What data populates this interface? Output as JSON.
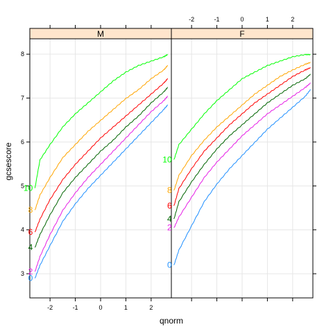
{
  "chart_data": {
    "type": "line",
    "xlabel": "qnorm",
    "ylabel": "gcsescore",
    "xlim": [
      -2.8,
      2.8
    ],
    "ylim": [
      2.45,
      8.35
    ],
    "xticks": [
      -2,
      -1,
      0,
      1,
      2
    ],
    "yticks": [
      3,
      4,
      5,
      6,
      7,
      8
    ],
    "grid": true,
    "panels": [
      {
        "name": "M",
        "series": [
          {
            "name": "0",
            "color": "#1f8fff",
            "x": [
              -2.6,
              -2.4,
              -2.0,
              -1.5,
              -1.0,
              -0.5,
              0.0,
              0.5,
              1.0,
              1.5,
              2.0,
              2.5,
              2.65
            ],
            "y": [
              2.9,
              3.2,
              3.65,
              4.2,
              4.6,
              4.95,
              5.25,
              5.55,
              5.85,
              6.15,
              6.45,
              6.75,
              6.85
            ]
          },
          {
            "name": "2",
            "color": "#e61ee6",
            "x": [
              -2.6,
              -2.4,
              -2.0,
              -1.5,
              -1.0,
              -0.5,
              0.0,
              0.5,
              1.0,
              1.5,
              2.0,
              2.5,
              2.65
            ],
            "y": [
              3.05,
              3.4,
              3.9,
              4.45,
              4.85,
              5.2,
              5.5,
              5.8,
              6.1,
              6.4,
              6.7,
              6.95,
              7.05
            ]
          },
          {
            "name": "4",
            "color": "#006400",
            "x": [
              -2.6,
              -2.4,
              -2.0,
              -1.5,
              -1.0,
              -0.5,
              0.0,
              0.5,
              1.0,
              1.5,
              2.0,
              2.5,
              2.65
            ],
            "y": [
              3.6,
              3.9,
              4.35,
              4.85,
              5.2,
              5.5,
              5.8,
              6.05,
              6.35,
              6.6,
              6.9,
              7.15,
              7.25
            ]
          },
          {
            "name": "6",
            "color": "#ff0000",
            "x": [
              -2.6,
              -2.4,
              -2.0,
              -1.5,
              -1.0,
              -0.5,
              0.0,
              0.5,
              1.0,
              1.5,
              2.0,
              2.5,
              2.65
            ],
            "y": [
              3.95,
              4.25,
              4.7,
              5.15,
              5.5,
              5.8,
              6.1,
              6.35,
              6.6,
              6.85,
              7.1,
              7.35,
              7.45
            ]
          },
          {
            "name": "8",
            "color": "#ffa500",
            "x": [
              -2.6,
              -2.4,
              -2.0,
              -1.5,
              -1.0,
              -0.5,
              0.0,
              0.5,
              1.0,
              1.5,
              2.0,
              2.5,
              2.65
            ],
            "y": [
              4.45,
              4.8,
              5.2,
              5.65,
              5.95,
              6.25,
              6.5,
              6.75,
              7.0,
              7.2,
              7.45,
              7.65,
              7.75
            ]
          },
          {
            "name": "10",
            "color": "#00ff00",
            "x": [
              -2.6,
              -2.4,
              -2.0,
              -1.5,
              -1.0,
              -0.5,
              0.0,
              0.5,
              1.0,
              1.5,
              2.0,
              2.5,
              2.65
            ],
            "y": [
              4.95,
              5.6,
              5.95,
              6.35,
              6.65,
              6.9,
              7.15,
              7.4,
              7.6,
              7.75,
              7.85,
              7.95,
              8.0
            ]
          }
        ]
      },
      {
        "name": "F",
        "series": [
          {
            "name": "0",
            "color": "#1f8fff",
            "x": [
              -2.7,
              -2.5,
              -2.0,
              -1.5,
              -1.0,
              -0.5,
              0.0,
              0.5,
              1.0,
              1.5,
              2.0,
              2.5,
              2.7
            ],
            "y": [
              3.2,
              3.55,
              4.1,
              4.65,
              5.05,
              5.4,
              5.7,
              6.0,
              6.3,
              6.55,
              6.8,
              7.05,
              7.2
            ]
          },
          {
            "name": "2",
            "color": "#e61ee6",
            "x": [
              -2.7,
              -2.5,
              -2.0,
              -1.5,
              -1.0,
              -0.5,
              0.0,
              0.5,
              1.0,
              1.5,
              2.0,
              2.5,
              2.7
            ],
            "y": [
              4.05,
              4.3,
              4.75,
              5.2,
              5.55,
              5.85,
              6.15,
              6.4,
              6.65,
              6.85,
              7.05,
              7.25,
              7.35
            ]
          },
          {
            "name": "4",
            "color": "#006400",
            "x": [
              -2.7,
              -2.5,
              -2.0,
              -1.5,
              -1.0,
              -0.5,
              0.0,
              0.5,
              1.0,
              1.5,
              2.0,
              2.5,
              2.7
            ],
            "y": [
              4.25,
              4.65,
              5.1,
              5.5,
              5.85,
              6.15,
              6.4,
              6.65,
              6.9,
              7.1,
              7.3,
              7.45,
              7.55
            ]
          },
          {
            "name": "6",
            "color": "#ff0000",
            "x": [
              -2.7,
              -2.5,
              -2.0,
              -1.5,
              -1.0,
              -0.5,
              0.0,
              0.5,
              1.0,
              1.5,
              2.0,
              2.5,
              2.7
            ],
            "y": [
              4.55,
              4.95,
              5.4,
              5.8,
              6.1,
              6.4,
              6.65,
              6.9,
              7.1,
              7.3,
              7.5,
              7.65,
              7.7
            ]
          },
          {
            "name": "8",
            "color": "#ffa500",
            "x": [
              -2.7,
              -2.5,
              -2.0,
              -1.5,
              -1.0,
              -0.5,
              0.0,
              0.5,
              1.0,
              1.5,
              2.0,
              2.5,
              2.7
            ],
            "y": [
              4.9,
              5.25,
              5.7,
              6.05,
              6.35,
              6.6,
              6.85,
              7.1,
              7.3,
              7.5,
              7.65,
              7.78,
              7.82
            ]
          },
          {
            "name": "10",
            "color": "#00ff00",
            "x": [
              -2.7,
              -2.5,
              -2.0,
              -1.5,
              -1.0,
              -0.5,
              0.0,
              0.5,
              1.0,
              1.5,
              2.0,
              2.5,
              2.7
            ],
            "y": [
              5.6,
              5.95,
              6.3,
              6.65,
              6.95,
              7.2,
              7.45,
              7.6,
              7.75,
              7.85,
              7.95,
              8.0,
              8.0
            ]
          }
        ]
      }
    ]
  },
  "colors": {
    "strip_bg": "#ffe5cc",
    "frame": "#000000",
    "grid": "#e6e6e6"
  }
}
